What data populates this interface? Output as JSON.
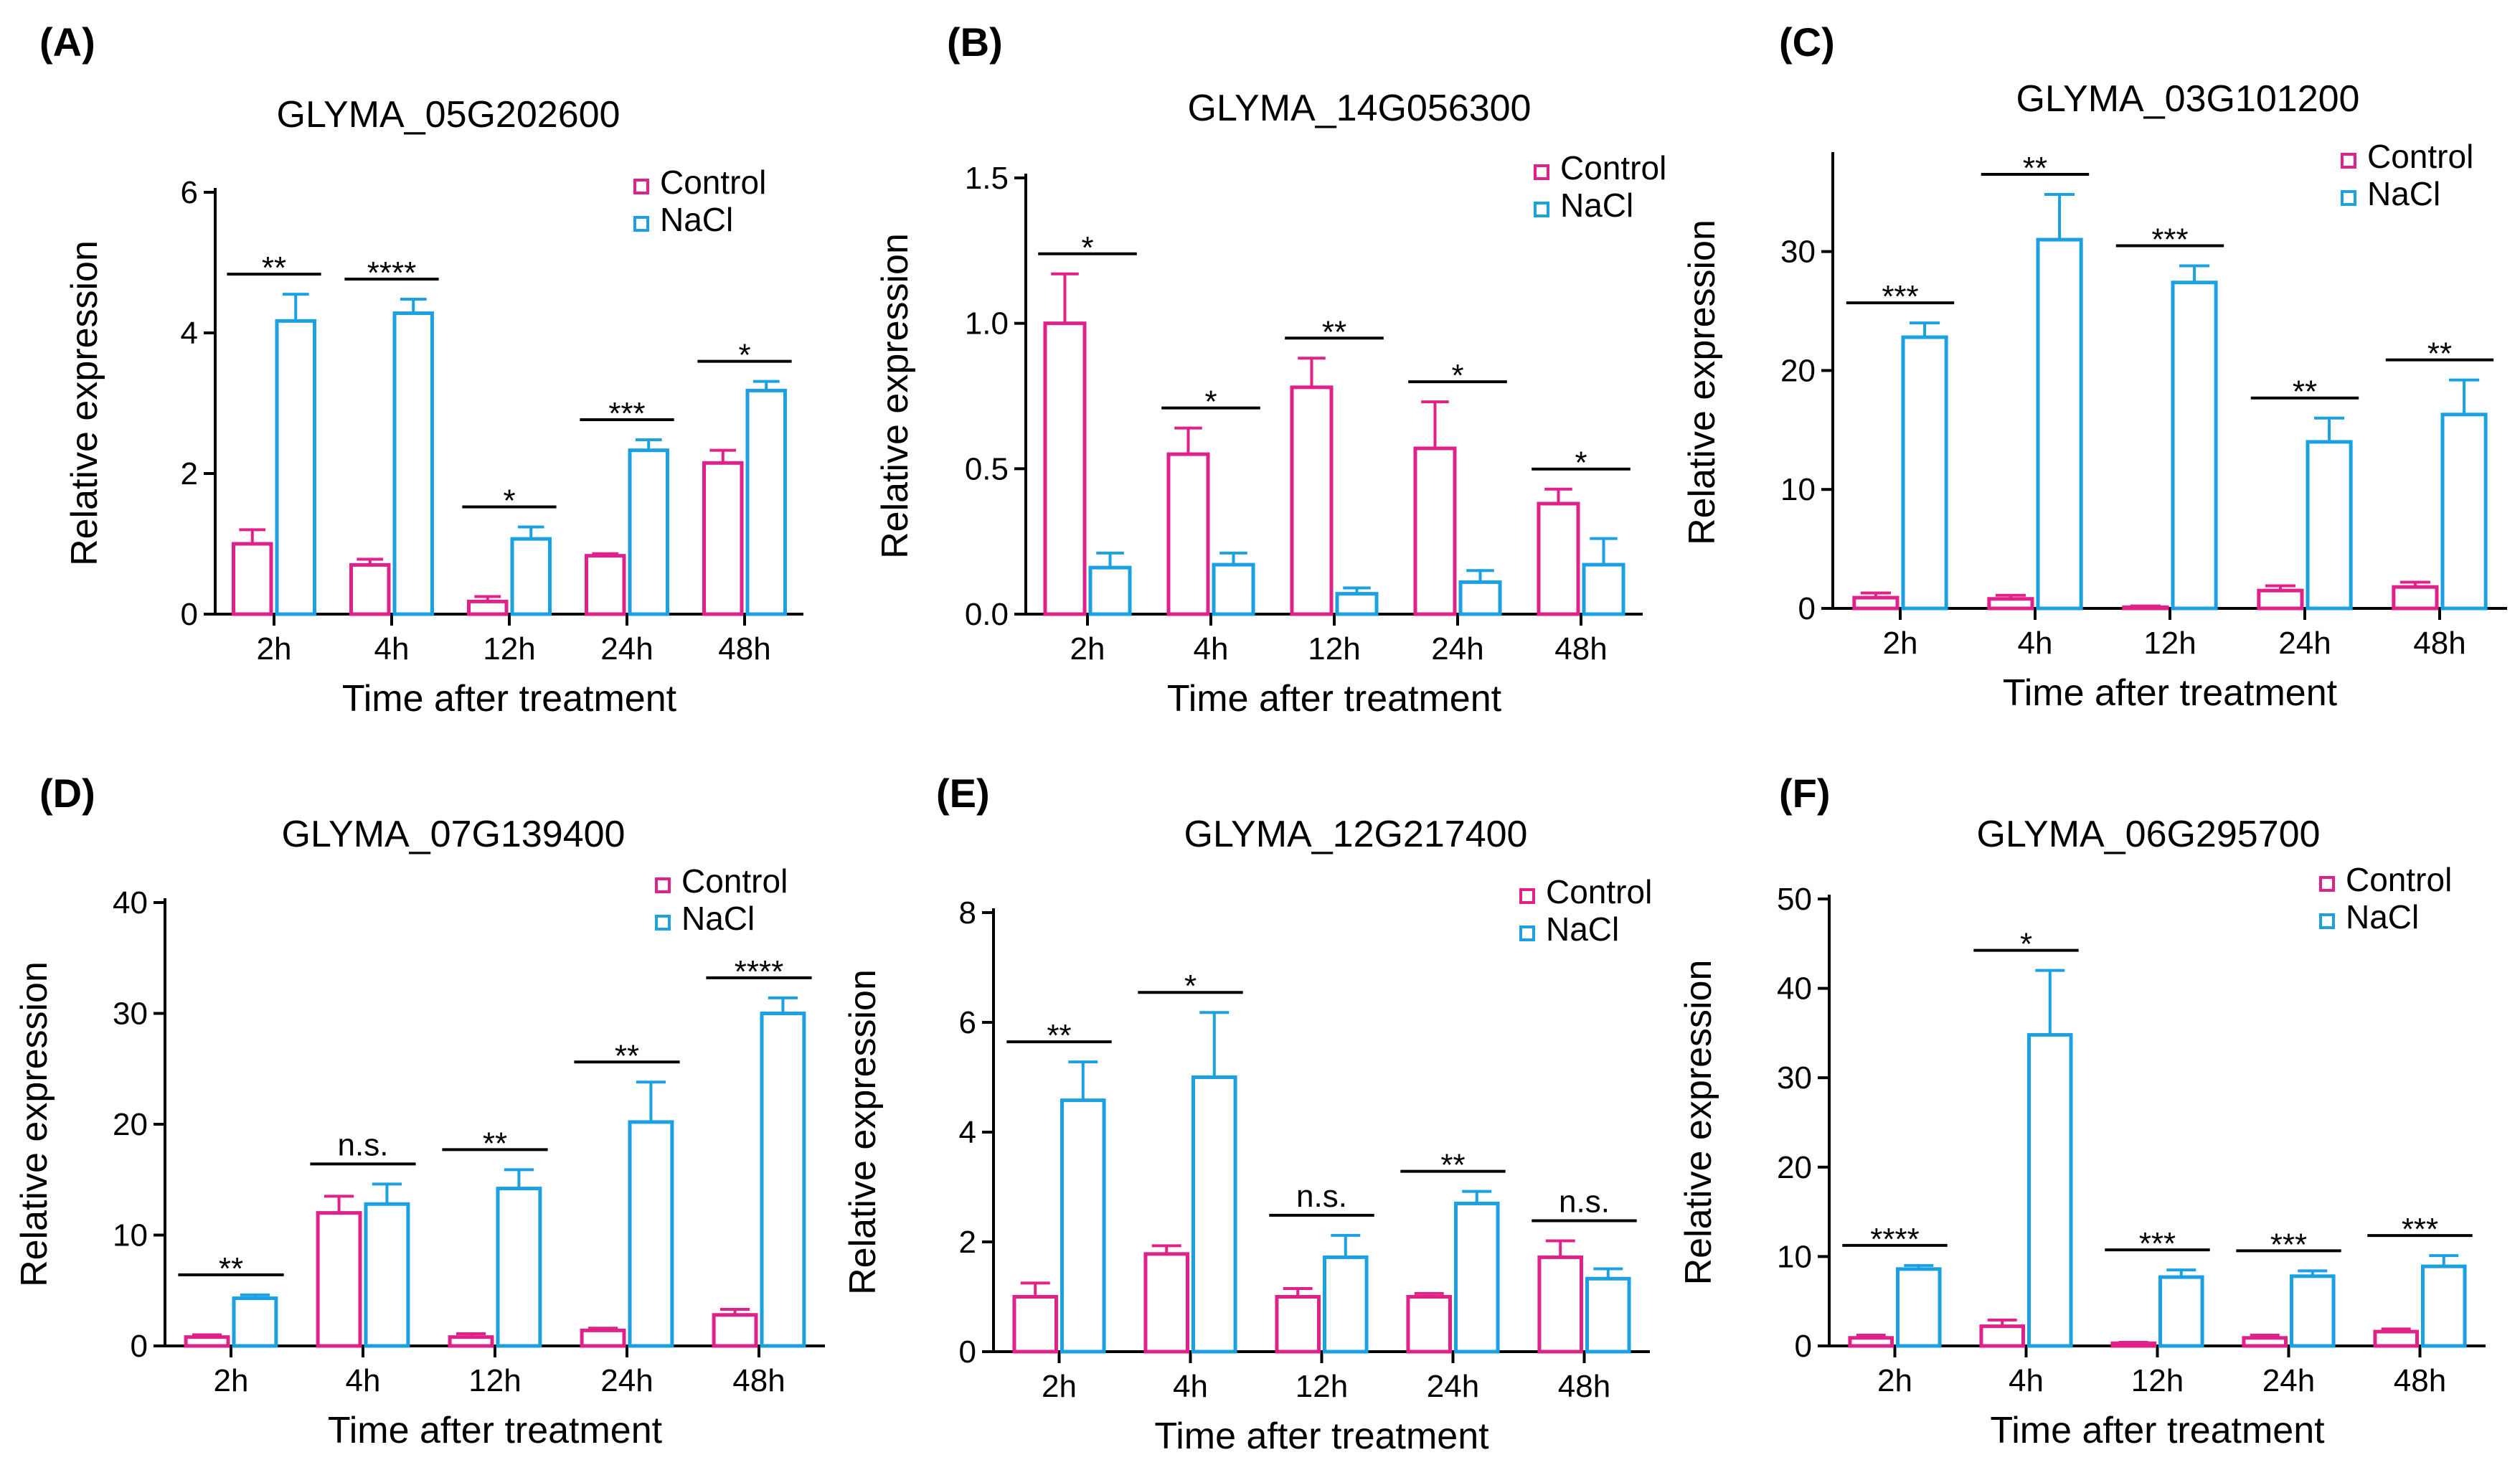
{
  "figure": {
    "colors": {
      "control": "#e0218a",
      "nacl": "#1ba1e2",
      "axis": "#000000"
    },
    "legend_labels": [
      "Control",
      "NaCl"
    ]
  },
  "chart_data": [
    {
      "panel": "(A)",
      "type": "bar",
      "title": "GLYMA_05G202600",
      "xlabel": "Time after treatment",
      "ylabel": "Relative expression",
      "categories": [
        "2h",
        "4h",
        "12h",
        "24h",
        "48h"
      ],
      "ylim": [
        0,
        6
      ],
      "yticks": [
        0,
        2,
        4,
        6
      ],
      "ytick_labels": [
        "0",
        "2",
        "4",
        "6"
      ],
      "series": [
        {
          "name": "Control",
          "values": [
            1.0,
            0.7,
            0.18,
            0.83,
            2.15
          ],
          "errors": [
            0.2,
            0.08,
            0.07,
            0.03,
            0.18
          ]
        },
        {
          "name": "NaCl",
          "values": [
            4.17,
            4.28,
            1.07,
            2.33,
            3.18
          ],
          "errors": [
            0.38,
            0.2,
            0.17,
            0.15,
            0.13
          ]
        }
      ],
      "significance": [
        "**",
        "****",
        "*",
        "***",
        "*"
      ],
      "legend_position": "top-right"
    },
    {
      "panel": "(B)",
      "type": "bar",
      "title": "GLYMA_14G056300",
      "xlabel": "Time after treatment",
      "ylabel": "Relative expression",
      "categories": [
        "2h",
        "4h",
        "12h",
        "24h",
        "48h"
      ],
      "ylim": [
        0,
        1.5
      ],
      "yticks": [
        0,
        0.5,
        1.0,
        1.5
      ],
      "ytick_labels": [
        "0.0",
        "0.5",
        "1.0",
        "1.5"
      ],
      "series": [
        {
          "name": "Control",
          "values": [
            1.0,
            0.55,
            0.78,
            0.57,
            0.38
          ],
          "errors": [
            0.17,
            0.09,
            0.1,
            0.16,
            0.05
          ]
        },
        {
          "name": "NaCl",
          "values": [
            0.16,
            0.17,
            0.07,
            0.11,
            0.17
          ],
          "errors": [
            0.05,
            0.04,
            0.02,
            0.04,
            0.09
          ]
        }
      ],
      "significance": [
        "*",
        "*",
        "**",
        "*",
        "*"
      ],
      "legend_position": "top-right"
    },
    {
      "panel": "(C)",
      "type": "bar",
      "title": "GLYMA_03G101200",
      "xlabel": "Time after treatment",
      "ylabel": "Relative expression",
      "categories": [
        "2h",
        "4h",
        "12h",
        "24h",
        "48h"
      ],
      "ylim": [
        0,
        38
      ],
      "yticks": [
        0,
        10,
        20,
        30
      ],
      "ytick_labels": [
        "0",
        "10",
        "20",
        "30"
      ],
      "series": [
        {
          "name": "Control",
          "values": [
            0.9,
            0.8,
            0.1,
            1.5,
            1.8
          ],
          "errors": [
            0.4,
            0.3,
            0.1,
            0.4,
            0.4
          ]
        },
        {
          "name": "NaCl",
          "values": [
            22.8,
            31.0,
            27.4,
            14.0,
            16.3
          ],
          "errors": [
            1.2,
            3.8,
            1.4,
            2.0,
            2.9
          ]
        }
      ],
      "significance": [
        "***",
        "**",
        "***",
        "**",
        "**"
      ],
      "legend_position": "top-right"
    },
    {
      "panel": "(D)",
      "type": "bar",
      "title": "GLYMA_07G139400",
      "xlabel": "Time after treatment",
      "ylabel": "Relative expression",
      "categories": [
        "2h",
        "4h",
        "12h",
        "24h",
        "48h"
      ],
      "ylim": [
        0,
        40
      ],
      "yticks": [
        0,
        10,
        20,
        30,
        40
      ],
      "ytick_labels": [
        "0",
        "10",
        "20",
        "30",
        "40"
      ],
      "series": [
        {
          "name": "Control",
          "values": [
            0.8,
            12.0,
            0.8,
            1.4,
            2.8
          ],
          "errors": [
            0.2,
            1.5,
            0.3,
            0.2,
            0.5
          ]
        },
        {
          "name": "NaCl",
          "values": [
            4.3,
            12.8,
            14.2,
            20.2,
            30.0
          ],
          "errors": [
            0.3,
            1.8,
            1.7,
            3.6,
            1.4
          ]
        }
      ],
      "significance": [
        "**",
        "n.s.",
        "**",
        "**",
        "****"
      ],
      "legend_position": "top-right"
    },
    {
      "panel": "(E)",
      "type": "bar",
      "title": "GLYMA_12G217400",
      "xlabel": "Time after treatment",
      "ylabel": "Relative expression",
      "categories": [
        "2h",
        "4h",
        "12h",
        "24h",
        "48h"
      ],
      "ylim": [
        0,
        8
      ],
      "yticks": [
        0,
        2,
        4,
        6,
        8
      ],
      "ytick_labels": [
        "0",
        "2",
        "4",
        "6",
        "8"
      ],
      "series": [
        {
          "name": "Control",
          "values": [
            1.0,
            1.78,
            1.0,
            1.0,
            1.72
          ],
          "errors": [
            0.25,
            0.15,
            0.15,
            0.06,
            0.3
          ]
        },
        {
          "name": "NaCl",
          "values": [
            4.58,
            5.0,
            1.72,
            2.7,
            1.33
          ],
          "errors": [
            0.7,
            1.18,
            0.4,
            0.22,
            0.18
          ]
        }
      ],
      "significance": [
        "**",
        "*",
        "n.s.",
        "**",
        "n.s."
      ],
      "legend_position": "top-right"
    },
    {
      "panel": "(F)",
      "type": "bar",
      "title": "GLYMA_06G295700",
      "xlabel": "Time after treatment",
      "ylabel": "Relative expression",
      "categories": [
        "2h",
        "4h",
        "12h",
        "24h",
        "48h"
      ],
      "ylim": [
        0,
        50
      ],
      "yticks": [
        0,
        10,
        20,
        30,
        40,
        50
      ],
      "ytick_labels": [
        "0",
        "10",
        "20",
        "30",
        "40",
        "50"
      ],
      "series": [
        {
          "name": "Control",
          "values": [
            0.9,
            2.2,
            0.3,
            0.9,
            1.6
          ],
          "errors": [
            0.3,
            0.7,
            0.1,
            0.3,
            0.3
          ]
        },
        {
          "name": "NaCl",
          "values": [
            8.6,
            34.8,
            7.7,
            7.8,
            8.9
          ],
          "errors": [
            0.4,
            7.2,
            0.8,
            0.6,
            1.2
          ]
        }
      ],
      "significance": [
        "****",
        "*",
        "***",
        "***",
        "***"
      ],
      "legend_position": "top-right"
    }
  ]
}
